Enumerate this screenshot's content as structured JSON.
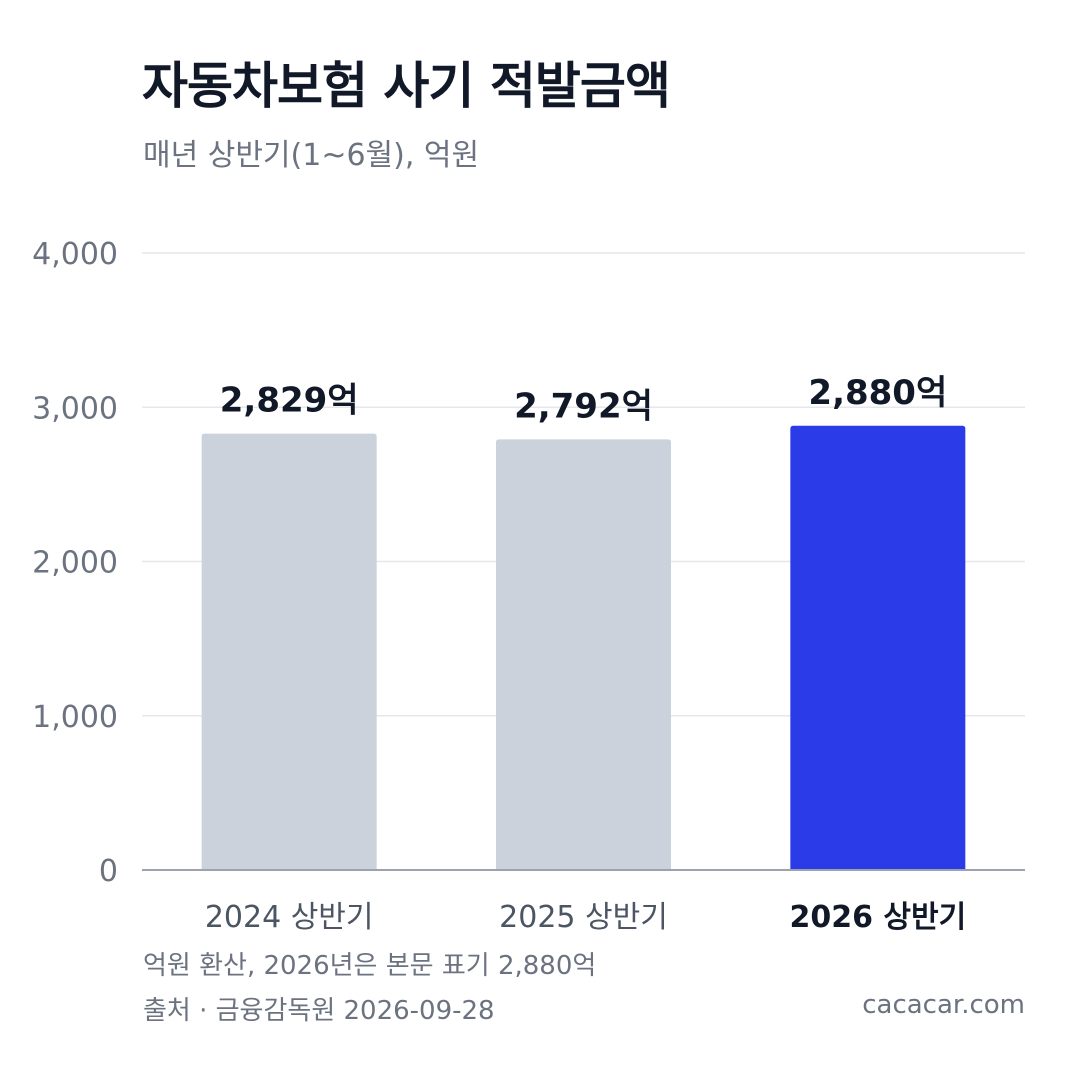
{
  "chart_data": {
    "type": "bar",
    "title": "자동차보험 사기 적발금액",
    "subtitle": "매년 상반기(1~6월), 억원",
    "categories": [
      "2024 상반기",
      "2025 상반기",
      "2026 상반기"
    ],
    "values": [
      2829,
      2792,
      2880
    ],
    "value_labels": [
      "2,829억",
      "2,792억",
      "2,880억"
    ],
    "highlight_index": 2,
    "colors": {
      "default": "#cbd2dc",
      "highlight": "#2b3be8"
    },
    "ylim": [
      0,
      4000
    ],
    "yticks": [
      0,
      1000,
      2000,
      3000,
      4000
    ],
    "ytick_labels": [
      "0",
      "1,000",
      "2,000",
      "3,000",
      "4,000"
    ],
    "grid": true,
    "legend": "none"
  },
  "footer": {
    "note": "억원 환산, 2026년은 본문 표기 2,880억",
    "source": "출처 · 금융감독원 2026-09-28",
    "site": "cacacar.com"
  }
}
